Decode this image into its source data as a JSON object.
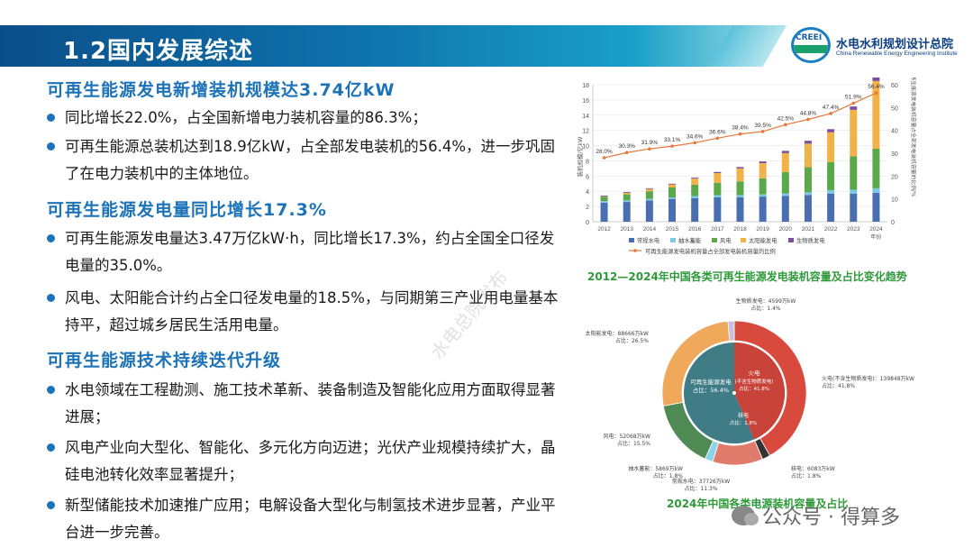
{
  "header": {
    "title": "1.2国内发展综述",
    "org_name_cn": "水电水利规划设计总院",
    "org_name_en": "China Renewable Energy Engineering Institute",
    "logo_text": "CREEI"
  },
  "sections": [
    {
      "heading": "可再生能源发电新增装机规模达3.74亿kW",
      "bullets": [
        "同比增长22.0%，占全国新增电力装机容量的86.3%；",
        "可再生能源总装机达到18.9亿kW，占全部发电装机的56.4%，进一步巩固了在电力装机中的主体地位。"
      ]
    },
    {
      "heading": "可再生能源发电量同比增长17.3%",
      "bullets": [
        "可再生能源发电量达3.47万亿kW·h，同比增长17.3%，约占全国全口径发电量的35.0%。",
        "风电、太阳能合计约占全口径发电量的18.5%，与同期第三产业用电量基本持平，超过城乡居民生活用电量。"
      ]
    },
    {
      "heading": "可再生能源技术持续迭代升级",
      "bullets": [
        "水电领域在工程勘测、施工技术革新、装备制造及智能化应用方面取得显著进展；",
        "风电产业向大型化、智能化、多元化方向迈进；光伏产业规模持续扩大，晶硅电池转化效率显著提升；",
        "新型储能技术加速推广应用；电解设备大型化与制氢技术进步显著，产业平台进一步完善。"
      ]
    }
  ],
  "chart_data": [
    {
      "type": "bar",
      "stacked": true,
      "title": "2012—2024年中国各类可再生能源发电装机容量及占比变化趋势",
      "ylabel": "装机规模/亿kW",
      "y2label": "可再生能源发电装机容量占全部发电装机容量的比例/%",
      "xlabel": "年份",
      "categories": [
        "2012",
        "2013",
        "2014",
        "2015",
        "2016",
        "2017",
        "2018",
        "2019",
        "2020",
        "2021",
        "2022",
        "2023",
        "2024"
      ],
      "ylim": [
        0,
        18
      ],
      "y_ticks": [
        0,
        2,
        4,
        6,
        8,
        10,
        12,
        14,
        16,
        18
      ],
      "y2lim": [
        0,
        60
      ],
      "y2_ticks": [
        0,
        10,
        20,
        30,
        40,
        50,
        60
      ],
      "series": [
        {
          "name": "常规水电",
          "color": "#4a6fb0",
          "values": [
            2.5,
            2.6,
            2.8,
            3.0,
            3.1,
            3.2,
            3.2,
            3.3,
            3.4,
            3.5,
            3.7,
            3.7,
            3.8
          ]
        },
        {
          "name": "抽水蓄能",
          "color": "#7ec7e4",
          "values": [
            0.2,
            0.2,
            0.2,
            0.2,
            0.27,
            0.29,
            0.3,
            0.3,
            0.31,
            0.36,
            0.45,
            0.5,
            0.59
          ]
        },
        {
          "name": "风电",
          "color": "#5aa84a",
          "values": [
            0.6,
            0.8,
            1.0,
            1.3,
            1.5,
            1.6,
            1.8,
            2.1,
            2.8,
            3.3,
            3.7,
            4.4,
            5.2
          ]
        },
        {
          "name": "太阳能发电",
          "color": "#f2b24a",
          "values": [
            0.03,
            0.2,
            0.3,
            0.4,
            0.8,
            1.3,
            1.7,
            2.0,
            2.5,
            3.1,
            3.9,
            6.1,
            8.9
          ]
        },
        {
          "name": "生物质发电",
          "color": "#7b4fa0",
          "values": [
            0.1,
            0.1,
            0.1,
            0.1,
            0.12,
            0.15,
            0.18,
            0.22,
            0.3,
            0.38,
            0.41,
            0.44,
            0.46
          ]
        }
      ],
      "line_series": {
        "name": "可再生能源发电装机容量占全部发电装机容量的比例",
        "color": "#e5783a",
        "values": [
          28.0,
          30.3,
          31.9,
          33.1,
          34.6,
          36.6,
          38.4,
          39.5,
          42.5,
          44.8,
          47.4,
          51.9,
          56.4
        ],
        "labels": [
          "28.0%",
          "30.3%",
          "31.9%",
          "33.1%",
          "34.6%",
          "36.6%",
          "38.4%",
          "39.5%",
          "42.5%",
          "44.8%",
          "47.4%",
          "51.9%",
          "56.4%"
        ]
      },
      "legend_position": "bottom"
    },
    {
      "type": "pie",
      "title": "2024年中国各类电源装机容量及占比",
      "center_label": "可再生能源发电",
      "center_share": "占比：56.4%",
      "slices": [
        {
          "name": "火电(不含生物质发电)",
          "value": 41.8,
          "color": "#d94a3e",
          "label": "火电(不含生物质发电)：139848万kW",
          "share": "占比：41.8%",
          "inner_label": "火电",
          "inner_sub": "(不含生物质发电)",
          "inner_share": "占比：41.8%"
        },
        {
          "name": "核电",
          "value": 1.8,
          "color": "#333333",
          "label": "核电：6083万kW",
          "share": "占比：1.8%",
          "inner_label": "核电",
          "inner_share": "占比：1.8%"
        },
        {
          "name": "常规水电",
          "value": 11.3,
          "color": "#e07a6a",
          "label": "常规水电：37726万kW",
          "share": "占比：11.3%"
        },
        {
          "name": "抽水蓄能",
          "value": 1.8,
          "color": "#8fd3e8",
          "label": "抽水蓄能：5869万kW",
          "share": "占比：1.8%"
        },
        {
          "name": "风电",
          "value": 15.5,
          "color": "#4f8a55",
          "label": "风电：52068万kW",
          "share": "占比：15.5%"
        },
        {
          "name": "太阳能发电",
          "value": 26.5,
          "color": "#f0a85a",
          "label": "太阳能发电：88666万kW",
          "share": "占比：26.5%"
        },
        {
          "name": "生物质发电",
          "value": 1.4,
          "color": "#c9bfe0",
          "label": "生物质发电：4599万kW",
          "share": "占比：1.4%"
        }
      ]
    }
  ],
  "watermarks": {
    "diagonal_text": "水电总院发布",
    "account_text": "公众号 · 得算多"
  }
}
